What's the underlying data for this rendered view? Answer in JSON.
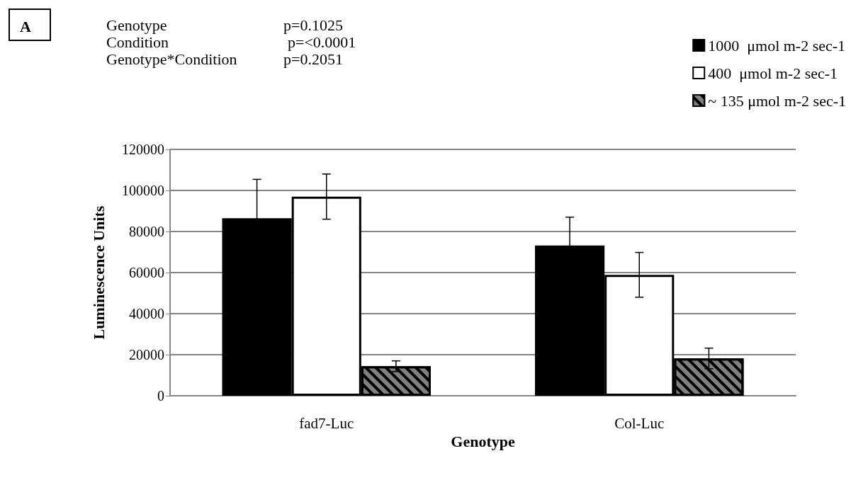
{
  "chart_data": {
    "type": "bar",
    "categories": [
      "fad7-Luc",
      "Col-Luc"
    ],
    "series": [
      {
        "name": "1000  μmol m-2 sec-1",
        "color": "#000000",
        "values": [
          86500,
          73200
        ],
        "errors": [
          18900,
          13800
        ]
      },
      {
        "name": "400  μmol m-2 sec-1",
        "color": "#ffffff",
        "values": [
          97000,
          58900
        ],
        "errors": [
          11000,
          10900
        ]
      },
      {
        "name": "~ 135 μmol m-2 sec-1",
        "color": "#808080",
        "values": [
          14400,
          18200
        ],
        "errors": [
          2600,
          5000
        ]
      }
    ],
    "xlabel": "Genotype",
    "ylabel": "Luminescence Units",
    "ylim": [
      0,
      120000
    ],
    "yticks": [
      0,
      20000,
      40000,
      60000,
      80000,
      100000,
      120000
    ],
    "grid": "y",
    "legend": "top right",
    "annotations": [
      "A",
      "Genotype",
      "p=0.1025",
      "Condition",
      "p=<0.0001",
      "Genotype*Condition",
      "p=0.2051"
    ]
  }
}
